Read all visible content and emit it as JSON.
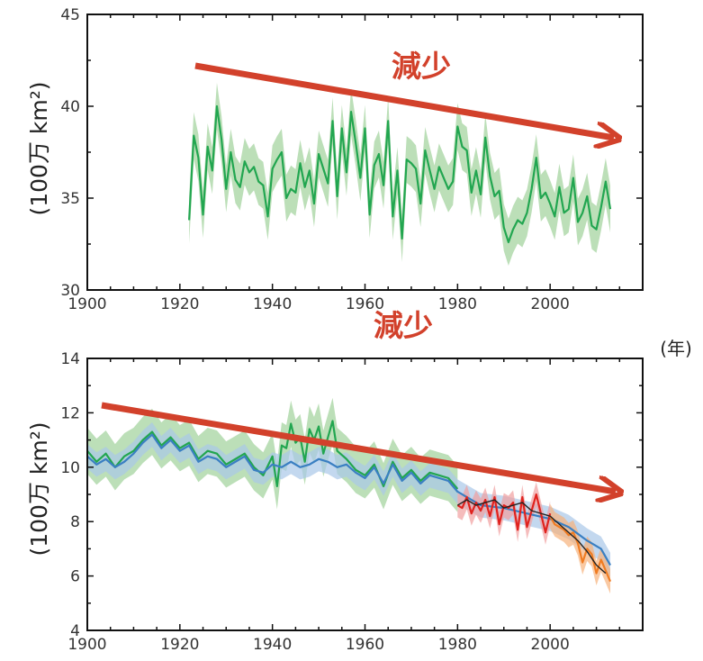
{
  "colors": {
    "arrow": "#d2412b",
    "green": "#22a650",
    "green_band": "#9fd29a",
    "blue": "#3a7fc2",
    "blue_band": "#a9c7e8",
    "red": "#e0221e",
    "orange": "#f07c22",
    "black": "#222222"
  },
  "x_unit": "(年)",
  "chart_data": [
    {
      "type": "line",
      "ylabel": "(100万 km²)",
      "xlim": [
        1900,
        2020
      ],
      "ylim": [
        30,
        45
      ],
      "xticks": [
        1900,
        1920,
        1940,
        1960,
        1980,
        2000
      ],
      "yticks": [
        30,
        35,
        40,
        45
      ],
      "annotation": "減少",
      "series": [
        {
          "color": "green",
          "x": [
            1922,
            1923,
            1924,
            1925,
            1926,
            1927,
            1928,
            1929,
            1930,
            1931,
            1932,
            1933,
            1934,
            1935,
            1936,
            1937,
            1938,
            1939,
            1940,
            1941,
            1942,
            1943,
            1944,
            1945,
            1946,
            1947,
            1948,
            1949,
            1950,
            1951,
            1952,
            1953,
            1954,
            1955,
            1956,
            1957,
            1958,
            1959,
            1960,
            1961,
            1962,
            1963,
            1964,
            1965,
            1966,
            1967,
            1968,
            1969,
            1970,
            1971,
            1972,
            1973,
            1974,
            1975,
            1976,
            1977,
            1978,
            1979,
            1980,
            1981,
            1982,
            1983,
            1984,
            1985,
            1986,
            1987,
            1988,
            1989,
            1990,
            1991,
            1992,
            1993,
            1994,
            1995,
            1996,
            1997,
            1998,
            1999,
            2000,
            2001,
            2002,
            2003,
            2004,
            2005,
            2006,
            2007,
            2008,
            2009,
            2010,
            2011,
            2012,
            2013
          ],
          "y": [
            33.8,
            38.4,
            37.2,
            34.1,
            37.8,
            36.5,
            40.0,
            38.2,
            35.5,
            37.5,
            36.0,
            35.6,
            37.0,
            36.4,
            36.7,
            35.9,
            35.7,
            34.0,
            36.6,
            37.1,
            37.5,
            35.0,
            35.5,
            35.3,
            36.9,
            35.6,
            36.5,
            34.7,
            37.4,
            36.6,
            35.8,
            39.2,
            35.1,
            38.8,
            36.4,
            39.7,
            38.0,
            36.1,
            38.8,
            34.1,
            36.8,
            37.4,
            35.7,
            39.2,
            34.0,
            36.5,
            32.8,
            37.1,
            36.9,
            36.6,
            34.7,
            37.6,
            36.5,
            35.5,
            36.7,
            36.1,
            35.5,
            35.9,
            38.9,
            37.8,
            37.6,
            35.3,
            36.5,
            35.2,
            38.3,
            36.2,
            35.1,
            35.4,
            33.4,
            32.6,
            33.3,
            33.8,
            33.6,
            34.2,
            35.5,
            37.2,
            35.0,
            35.3,
            34.7,
            34.0,
            35.6,
            34.2,
            34.4,
            36.1,
            33.7,
            34.2,
            35.1,
            33.5,
            33.3,
            34.5,
            35.9,
            34.4
          ]
        }
      ]
    },
    {
      "type": "line",
      "ylabel": "(100万 km²)",
      "xlim": [
        1900,
        2020
      ],
      "ylim": [
        4,
        14
      ],
      "xticks": [
        1900,
        1920,
        1940,
        1960,
        1980,
        2000
      ],
      "yticks": [
        4,
        6,
        8,
        10,
        12,
        14
      ],
      "annotation": "減少",
      "series": [
        {
          "color": "green",
          "x": [
            1900,
            1902,
            1904,
            1906,
            1908,
            1910,
            1912,
            1914,
            1916,
            1918,
            1920,
            1922,
            1924,
            1926,
            1928,
            1930,
            1932,
            1934,
            1936,
            1938,
            1940,
            1941,
            1942,
            1943,
            1944,
            1945,
            1946,
            1947,
            1948,
            1949,
            1950,
            1951,
            1952,
            1953,
            1954,
            1956,
            1958,
            1960,
            1962,
            1964,
            1966,
            1968,
            1970,
            1972,
            1974,
            1976,
            1978,
            1980
          ],
          "y": [
            10.6,
            10.2,
            10.5,
            10.0,
            10.4,
            10.6,
            11.0,
            11.3,
            10.8,
            11.1,
            10.7,
            10.9,
            10.3,
            10.6,
            10.5,
            10.1,
            10.3,
            10.5,
            10.0,
            9.7,
            10.4,
            9.3,
            10.8,
            10.7,
            11.6,
            10.9,
            11.1,
            10.2,
            11.4,
            11.0,
            11.5,
            10.5,
            11.1,
            11.7,
            10.6,
            10.3,
            9.9,
            9.7,
            10.1,
            9.3,
            10.2,
            9.6,
            9.9,
            9.5,
            9.8,
            9.7,
            9.6,
            9.2
          ]
        },
        {
          "color": "blue",
          "x": [
            1900,
            1902,
            1904,
            1906,
            1908,
            1910,
            1912,
            1914,
            1916,
            1918,
            1920,
            1922,
            1924,
            1926,
            1928,
            1930,
            1932,
            1934,
            1936,
            1938,
            1940,
            1942,
            1944,
            1946,
            1948,
            1950,
            1952,
            1954,
            1956,
            1958,
            1960,
            1962,
            1964,
            1966,
            1968,
            1970,
            1972,
            1974,
            1976,
            1978,
            1980,
            1985,
            1990,
            1995,
            2000,
            2004,
            2008,
            2011,
            2013
          ],
          "y": [
            10.4,
            10.1,
            10.3,
            10.0,
            10.2,
            10.5,
            10.9,
            11.2,
            10.7,
            11.0,
            10.6,
            10.8,
            10.2,
            10.4,
            10.3,
            10.0,
            10.2,
            10.4,
            9.9,
            9.8,
            10.1,
            10.0,
            10.2,
            10.0,
            10.1,
            10.3,
            10.2,
            10.0,
            10.1,
            9.8,
            9.6,
            10.0,
            9.4,
            10.1,
            9.5,
            9.8,
            9.4,
            9.7,
            9.6,
            9.5,
            9.1,
            8.6,
            8.5,
            8.3,
            8.1,
            7.8,
            7.3,
            7.0,
            6.4
          ]
        },
        {
          "color": "red",
          "x": [
            1980,
            1981,
            1982,
            1983,
            1984,
            1985,
            1986,
            1987,
            1988,
            1989,
            1990,
            1991,
            1992,
            1993,
            1994,
            1995,
            1996,
            1997,
            1998,
            1999,
            2000
          ],
          "y": [
            8.6,
            8.5,
            8.9,
            8.3,
            8.7,
            8.4,
            8.8,
            8.2,
            8.9,
            7.9,
            8.6,
            8.5,
            8.7,
            7.7,
            8.9,
            7.8,
            8.4,
            9.0,
            8.3,
            7.6,
            8.3
          ]
        },
        {
          "color": "orange",
          "x": [
            2000,
            2001,
            2002,
            2003,
            2004,
            2005,
            2006,
            2007,
            2008,
            2009,
            2010,
            2011,
            2012,
            2013
          ],
          "y": [
            8.2,
            7.9,
            7.8,
            7.7,
            7.5,
            7.6,
            7.2,
            6.5,
            7.0,
            6.8,
            6.1,
            6.6,
            6.2,
            5.8
          ]
        },
        {
          "color": "black",
          "x": [
            1980,
            1982,
            1984,
            1986,
            1988,
            1990,
            1992,
            1994,
            1996,
            1998,
            2000,
            2002,
            2004,
            2006,
            2008,
            2010,
            2012
          ],
          "y": [
            8.6,
            8.8,
            8.6,
            8.7,
            8.8,
            8.5,
            8.6,
            8.7,
            8.4,
            8.3,
            8.2,
            7.9,
            7.6,
            7.3,
            6.9,
            6.4,
            6.1
          ]
        }
      ]
    }
  ]
}
